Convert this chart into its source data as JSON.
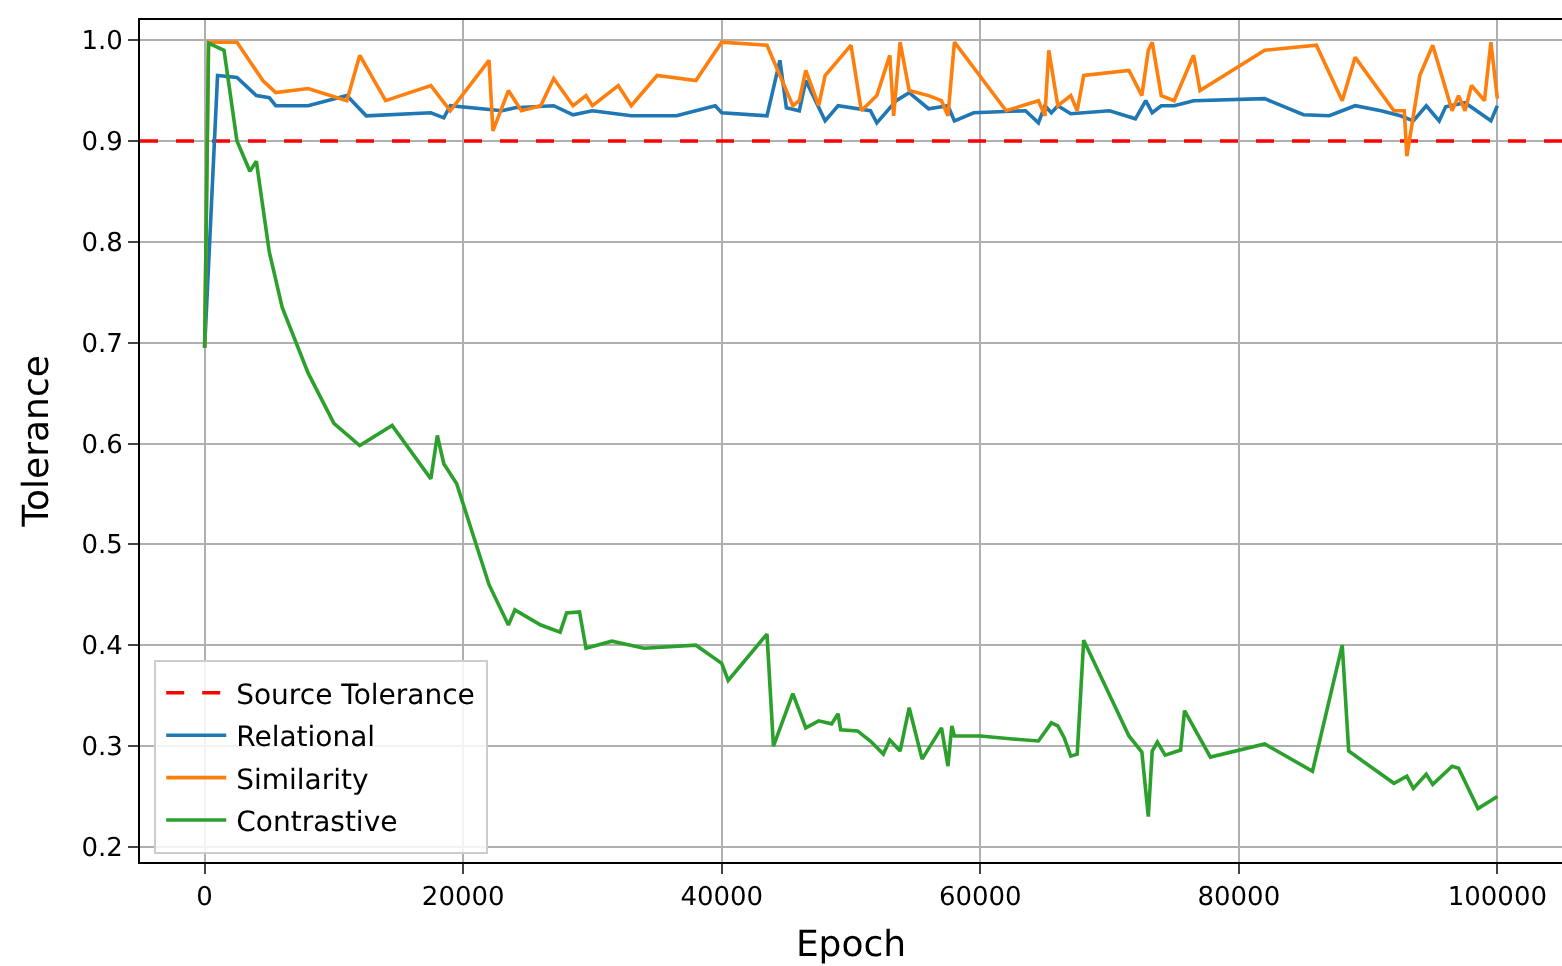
{
  "chart_data": {
    "type": "line",
    "xlabel": "Epoch",
    "ylabel": "Tolerance",
    "xlim": [
      -5000,
      105000
    ],
    "xticks": [
      0,
      20000,
      40000,
      60000,
      80000,
      100000
    ],
    "ylim": [
      0.185,
      1.02
    ],
    "yticks": [
      {
        "value": 0.2,
        "label": "0.2"
      },
      {
        "value": 0.3,
        "label": "0.3"
      },
      {
        "value": 0.4,
        "label": "0.4"
      },
      {
        "value": 0.5,
        "label": "0.5"
      },
      {
        "value": 0.6,
        "label": "0.6"
      },
      {
        "value": 0.7,
        "label": "0.7"
      },
      {
        "value": 0.8,
        "label": "0.8"
      },
      {
        "value": 0.9,
        "label": "0.9"
      },
      {
        "value": 1.0,
        "label": "1.0"
      }
    ],
    "grid": true,
    "legend": "bottom left",
    "line_style": "solid",
    "ref_lines": [
      {
        "axis": "y",
        "value": 0.9,
        "label": "Source Tolerance",
        "color": "#ff0000",
        "line_style": "dashed"
      }
    ],
    "series": [
      {
        "name": "Relational",
        "color": "#1f77b4",
        "x": [
          0,
          1000,
          2500,
          4000,
          5000,
          5500,
          8000,
          11000,
          12500,
          17500,
          18500,
          19000,
          23000,
          24000,
          27000,
          28500,
          30000,
          33000,
          36500,
          39500,
          40000,
          43500,
          44500,
          45000,
          46000,
          46500,
          48000,
          49000,
          51500,
          52000,
          53500,
          54500,
          56000,
          57500,
          58000,
          59500,
          63500,
          64500,
          65000,
          65500,
          66000,
          67000,
          70000,
          72000,
          72800,
          73300,
          74000,
          75000,
          76500,
          82000,
          85000,
          87000,
          89000,
          91000,
          92500,
          93500,
          94500,
          95500,
          96000,
          97500,
          99500,
          100000
        ],
        "values": [
          0.695,
          0.965,
          0.963,
          0.945,
          0.943,
          0.935,
          0.935,
          0.945,
          0.925,
          0.928,
          0.923,
          0.935,
          0.93,
          0.933,
          0.935,
          0.926,
          0.93,
          0.925,
          0.925,
          0.935,
          0.928,
          0.925,
          0.98,
          0.933,
          0.93,
          0.96,
          0.92,
          0.935,
          0.93,
          0.918,
          0.94,
          0.948,
          0.932,
          0.935,
          0.92,
          0.928,
          0.93,
          0.918,
          0.935,
          0.928,
          0.935,
          0.927,
          0.93,
          0.922,
          0.94,
          0.928,
          0.935,
          0.935,
          0.94,
          0.942,
          0.926,
          0.925,
          0.935,
          0.93,
          0.925,
          0.92,
          0.935,
          0.92,
          0.934,
          0.938,
          0.92,
          0.935
        ]
      },
      {
        "name": "Similarity",
        "color": "#ff7f0e",
        "x": [
          0,
          300,
          2500,
          4500,
          5500,
          8000,
          11000,
          12000,
          14000,
          17500,
          19000,
          22000,
          22300,
          23500,
          24500,
          26000,
          27000,
          28500,
          29500,
          30000,
          32000,
          33000,
          35000,
          38000,
          40000,
          43500,
          45500,
          46000,
          46500,
          47500,
          48000,
          50000,
          50800,
          52000,
          53000,
          53300,
          53800,
          54500,
          56000,
          57000,
          57500,
          58000,
          62000,
          64500,
          65000,
          65300,
          66000,
          67000,
          67500,
          68000,
          71500,
          72500,
          73000,
          73300,
          74000,
          75000,
          76500,
          77000,
          82000,
          86000,
          88000,
          89000,
          92000,
          92800,
          93000,
          94000,
          95000,
          96500,
          97000,
          97500,
          98000,
          99000,
          99500,
          100000
        ],
        "values": [
          0.695,
          0.998,
          0.998,
          0.96,
          0.948,
          0.952,
          0.94,
          0.985,
          0.94,
          0.955,
          0.93,
          0.98,
          0.91,
          0.95,
          0.93,
          0.935,
          0.962,
          0.935,
          0.945,
          0.935,
          0.955,
          0.935,
          0.965,
          0.96,
          0.998,
          0.995,
          0.935,
          0.94,
          0.97,
          0.935,
          0.965,
          0.995,
          0.93,
          0.945,
          0.985,
          0.925,
          0.998,
          0.95,
          0.945,
          0.94,
          0.925,
          0.998,
          0.93,
          0.94,
          0.925,
          0.99,
          0.935,
          0.945,
          0.93,
          0.965,
          0.97,
          0.945,
          0.99,
          0.998,
          0.945,
          0.94,
          0.985,
          0.95,
          0.99,
          0.995,
          0.94,
          0.983,
          0.93,
          0.93,
          0.885,
          0.965,
          0.995,
          0.93,
          0.945,
          0.93,
          0.955,
          0.94,
          0.998,
          0.942
        ]
      },
      {
        "name": "Contrastive",
        "color": "#2ca02c",
        "x": [
          0,
          300,
          1500,
          2500,
          3500,
          4000,
          5000,
          6000,
          8000,
          10000,
          12000,
          14500,
          17500,
          18000,
          18500,
          19500,
          22000,
          23500,
          24000,
          26000,
          27500,
          28000,
          29000,
          29500,
          31500,
          34000,
          38000,
          40000,
          40500,
          43500,
          44000,
          45500,
          46500,
          47500,
          48500,
          49000,
          49200,
          50500,
          51500,
          52500,
          53000,
          53800,
          54500,
          55500,
          57000,
          57500,
          57800,
          58000,
          60000,
          62500,
          64500,
          65500,
          66000,
          66500,
          67000,
          67500,
          68000,
          71500,
          72500,
          73000,
          73300,
          73700,
          74300,
          75500,
          75800,
          77800,
          82000,
          85700,
          88000,
          88500,
          92000,
          93000,
          93500,
          94500,
          95000,
          96500,
          97000,
          98500,
          100000
        ],
        "values": [
          0.695,
          0.997,
          0.99,
          0.9,
          0.87,
          0.88,
          0.79,
          0.735,
          0.67,
          0.62,
          0.598,
          0.618,
          0.565,
          0.608,
          0.58,
          0.56,
          0.46,
          0.42,
          0.435,
          0.42,
          0.413,
          0.432,
          0.433,
          0.397,
          0.404,
          0.397,
          0.4,
          0.382,
          0.365,
          0.411,
          0.3,
          0.352,
          0.318,
          0.325,
          0.322,
          0.332,
          0.316,
          0.315,
          0.305,
          0.292,
          0.306,
          0.295,
          0.338,
          0.287,
          0.318,
          0.28,
          0.32,
          0.31,
          0.31,
          0.307,
          0.305,
          0.323,
          0.32,
          0.308,
          0.29,
          0.292,
          0.405,
          0.31,
          0.294,
          0.23,
          0.295,
          0.304,
          0.291,
          0.296,
          0.335,
          0.289,
          0.302,
          0.275,
          0.4,
          0.295,
          0.263,
          0.27,
          0.258,
          0.272,
          0.262,
          0.28,
          0.278,
          0.238,
          0.25
        ]
      }
    ]
  }
}
